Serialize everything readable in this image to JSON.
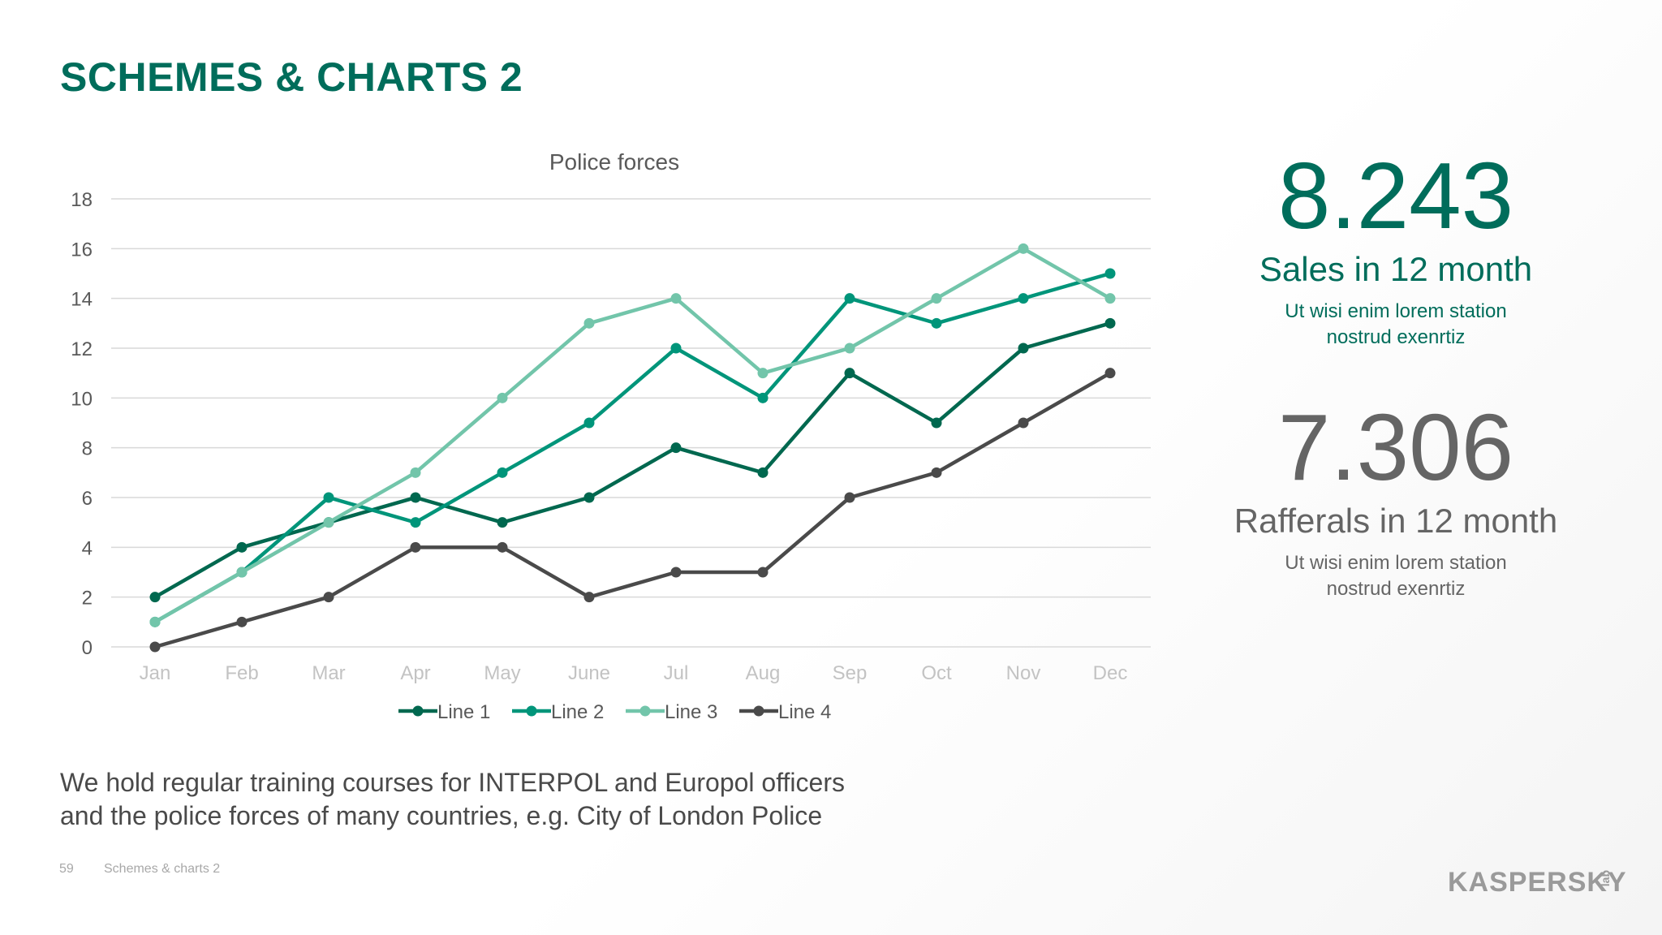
{
  "slide": {
    "title": "SCHEMES & CHARTS 2",
    "page_number": "59",
    "footer_text": "Schemes & charts 2",
    "caption_lines": [
      "We hold regular training courses for INTERPOL and Europol officers",
      "and the police forces of many countries, e.g. City of London Police"
    ]
  },
  "stats": [
    {
      "value": "8.243",
      "label": "Sales in 12 month",
      "description": "Ut wisi enim lorem station\nnostrud exenrtiz"
    },
    {
      "value": "7.306",
      "label": "Rafferals in 12 month",
      "description": "Ut wisi enim lorem station\nnostrud exenrtiz"
    }
  ],
  "logo": {
    "word": "KASPERSKY",
    "sub": "lab"
  },
  "colors": {
    "brand": "#006d5b",
    "gray": "#656565",
    "line1": "#00684f",
    "line2": "#00957a",
    "line3": "#72c5aa",
    "line4": "#4a4a4a",
    "grid": "#d9d9d9",
    "tick": "#595959",
    "xtick": "#c3c3c3"
  },
  "chart_data": {
    "type": "line",
    "title": "Police forces",
    "categories": [
      "Jan",
      "Feb",
      "Mar",
      "Apr",
      "May",
      "June",
      "Jul",
      "Aug",
      "Sep",
      "Oct",
      "Nov",
      "Dec"
    ],
    "series": [
      {
        "name": "Line 1",
        "color": "#00684f",
        "values": [
          2,
          4,
          5,
          6,
          5,
          6,
          8,
          7,
          11,
          9,
          12,
          13
        ]
      },
      {
        "name": "Line 2",
        "color": "#00957a",
        "values": [
          1,
          3,
          6,
          5,
          7,
          9,
          12,
          10,
          14,
          13,
          14,
          15
        ]
      },
      {
        "name": "Line 3",
        "color": "#72c5aa",
        "values": [
          1,
          3,
          5,
          7,
          10,
          13,
          14,
          11,
          12,
          14,
          16,
          14
        ]
      },
      {
        "name": "Line 4",
        "color": "#4a4a4a",
        "values": [
          0,
          1,
          2,
          4,
          4,
          2,
          3,
          3,
          6,
          7,
          9,
          11
        ]
      }
    ],
    "ylim": [
      0,
      18
    ],
    "yticks": [
      0,
      2,
      4,
      6,
      8,
      10,
      12,
      14,
      16,
      18
    ],
    "grid": true,
    "legend": "bottom",
    "xlabel": "",
    "ylabel": ""
  }
}
